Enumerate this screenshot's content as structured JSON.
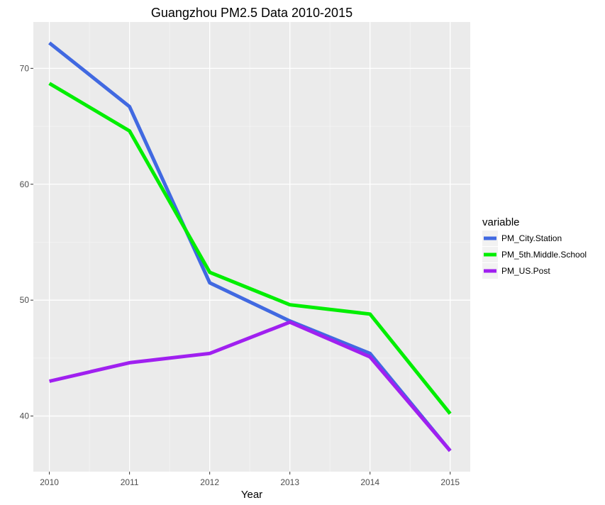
{
  "chart_data": {
    "type": "line",
    "title": "Guangzhou PM2.5 Data 2010-2015",
    "xlabel": "Year",
    "ylabel": "",
    "x": [
      2010,
      2011,
      2012,
      2013,
      2014,
      2015
    ],
    "xlim": [
      2009.8,
      2015.25
    ],
    "ylim": [
      35.2,
      74.0
    ],
    "yticks": [
      40,
      50,
      60,
      70
    ],
    "grid": true,
    "legend": {
      "title": "variable",
      "position": "right"
    },
    "series": [
      {
        "name": "PM_City.Station",
        "color": "#4169e1",
        "values": [
          72.2,
          66.7,
          51.5,
          48.2,
          45.4,
          37.0
        ]
      },
      {
        "name": "PM_5th.Middle.School",
        "color": "#00ee00",
        "values": [
          68.7,
          64.6,
          52.4,
          49.6,
          48.8,
          40.2
        ]
      },
      {
        "name": "PM_US.Post",
        "color": "#a020f0",
        "values": [
          43.0,
          44.6,
          45.4,
          48.1,
          45.1,
          37.0
        ]
      }
    ]
  }
}
